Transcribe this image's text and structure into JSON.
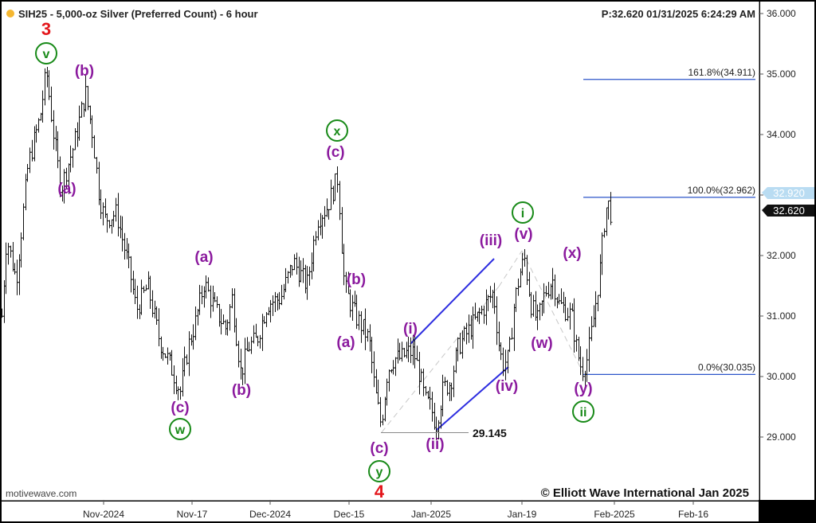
{
  "header": {
    "title": "SIH25 - 5,000-oz Silver (Preferred Count) - 6 hour",
    "status": "P:32.620  01/31/2025 6:24:29 AM",
    "status_dot_color": "#f5b731"
  },
  "chart_data": {
    "type": "bar",
    "style": "ohlc",
    "title": "SIH25 - 5,000-oz Silver (Preferred Count) - 6 hour",
    "ylim": [
      28.2,
      36.2
    ],
    "y_ticks": [
      "29.000",
      "30.000",
      "31.000",
      "32.000",
      "33.000",
      "34.000",
      "35.000",
      "36.000"
    ],
    "x_ticks": [
      "Nov-2024",
      "Nov-17",
      "Dec-2024",
      "Dec-15",
      "Jan-2025",
      "Jan-19",
      "Feb-2025",
      "Feb-16"
    ],
    "price_path": [
      [
        2,
        31.0
      ],
      [
        8,
        32.3
      ],
      [
        20,
        31.6
      ],
      [
        35,
        33.5
      ],
      [
        50,
        34.3
      ],
      [
        58,
        35.05
      ],
      [
        66,
        34.1
      ],
      [
        76,
        33.1
      ],
      [
        92,
        33.8
      ],
      [
        107,
        34.7
      ],
      [
        116,
        34.0
      ],
      [
        124,
        33.0
      ],
      [
        131,
        32.6
      ],
      [
        146,
        32.7
      ],
      [
        163,
        31.7
      ],
      [
        171,
        31.1
      ],
      [
        185,
        31.5
      ],
      [
        200,
        30.6
      ],
      [
        213,
        30.2
      ],
      [
        226,
        29.75
      ],
      [
        236,
        30.5
      ],
      [
        245,
        30.9
      ],
      [
        256,
        31.55
      ],
      [
        270,
        31.1
      ],
      [
        283,
        30.8
      ],
      [
        291,
        31.3
      ],
      [
        302,
        30.05
      ],
      [
        312,
        30.5
      ],
      [
        322,
        30.6
      ],
      [
        335,
        31.2
      ],
      [
        352,
        31.3
      ],
      [
        368,
        31.9
      ],
      [
        385,
        31.5
      ],
      [
        398,
        32.6
      ],
      [
        410,
        32.8
      ],
      [
        424,
        33.3
      ],
      [
        428,
        32.3
      ],
      [
        432,
        31.5
      ],
      [
        437,
        31.3
      ],
      [
        446,
        31.0
      ],
      [
        455,
        30.8
      ],
      [
        463,
        30.6
      ],
      [
        470,
        29.8
      ],
      [
        478,
        29.2
      ],
      [
        486,
        30.1
      ],
      [
        494,
        30.3
      ],
      [
        503,
        30.3
      ],
      [
        511,
        30.4
      ],
      [
        519,
        30.4
      ],
      [
        527,
        30.0
      ],
      [
        533,
        29.6
      ],
      [
        540,
        29.5
      ],
      [
        547,
        29.2
      ],
      [
        556,
        29.8
      ],
      [
        565,
        29.9
      ],
      [
        575,
        30.5
      ],
      [
        590,
        30.8
      ],
      [
        605,
        31.1
      ],
      [
        619,
        31.4
      ],
      [
        625,
        30.6
      ],
      [
        630,
        30.2
      ],
      [
        638,
        30.3
      ],
      [
        645,
        31.2
      ],
      [
        652,
        31.7
      ],
      [
        658,
        31.95
      ],
      [
        666,
        31.2
      ],
      [
        674,
        30.9
      ],
      [
        684,
        31.4
      ],
      [
        693,
        31.6
      ],
      [
        701,
        31.2
      ],
      [
        710,
        31.1
      ],
      [
        717,
        31.0
      ],
      [
        724,
        30.4
      ],
      [
        730,
        30.1
      ],
      [
        737,
        30.3
      ],
      [
        745,
        31.0
      ],
      [
        752,
        31.7
      ],
      [
        758,
        32.55
      ],
      [
        762,
        32.9
      ],
      [
        768,
        32.62
      ]
    ],
    "pivots": [
      {
        "date": "mid-Oct",
        "price": 35.05,
        "labels": [
          "3",
          "v"
        ]
      },
      {
        "date": "late-Oct",
        "price": 33.1,
        "labels": [
          "(a)"
        ]
      },
      {
        "date": "late-Oct",
        "price": 34.7,
        "labels": [
          "(b)"
        ]
      },
      {
        "date": "mid-Nov",
        "price": 29.75,
        "labels": [
          "(c)",
          "w"
        ]
      },
      {
        "date": "Nov-17",
        "price": 31.55,
        "labels": [
          "(a)"
        ]
      },
      {
        "date": "late-Nov",
        "price": 30.05,
        "labels": [
          "(b)"
        ]
      },
      {
        "date": "Dec-12",
        "price": 33.3,
        "labels": [
          "(c)",
          "x"
        ]
      },
      {
        "date": "mid-Dec",
        "price": 30.8,
        "labels": [
          "(a)"
        ]
      },
      {
        "date": "mid-Dec",
        "price": 31.3,
        "labels": [
          "(b)"
        ]
      },
      {
        "date": "Dec-20",
        "price": 29.145,
        "labels": [
          "(c)",
          "y",
          "4"
        ]
      },
      {
        "date": "Dec-27",
        "price": 30.4,
        "labels": [
          "(i)"
        ]
      },
      {
        "date": "Jan-02",
        "price": 29.2,
        "labels": [
          "(ii)"
        ]
      },
      {
        "date": "Jan-14",
        "price": 31.4,
        "labels": [
          "(iii)"
        ]
      },
      {
        "date": "Jan-16",
        "price": 30.2,
        "labels": [
          "(iv)"
        ]
      },
      {
        "date": "Jan-20",
        "price": 31.95,
        "labels": [
          "(v)",
          "i"
        ]
      },
      {
        "date": "Jan-22",
        "price": 30.9,
        "labels": [
          "(w)"
        ]
      },
      {
        "date": "Jan-24",
        "price": 31.6,
        "labels": [
          "(x)"
        ]
      },
      {
        "date": "Jan-28",
        "price": 30.035,
        "labels": [
          "(y)",
          "ii"
        ]
      }
    ],
    "fib_levels": [
      {
        "label": "161.8%(34.911)",
        "price": 34.911
      },
      {
        "label": "100.0%(32.962)",
        "price": 32.962
      },
      {
        "label": "0.0%(30.035)",
        "price": 30.035
      }
    ],
    "level_label": "29.145",
    "level_price": 29.145,
    "price_tags": [
      {
        "text": "32.920",
        "price": 32.92,
        "color": "#b9dcf2"
      },
      {
        "text": "32.620",
        "price": 32.62,
        "color": "#111111"
      }
    ]
  },
  "watermark": "motivewave.com",
  "copyright": "© Elliott Wave International Jan 2025",
  "colors": {
    "wave": "#8b1a9e",
    "circle": "#188a18",
    "red": "#e3161b",
    "channel": "#2e2ee0",
    "fib": "#2b55c9",
    "bars": "#111111"
  }
}
